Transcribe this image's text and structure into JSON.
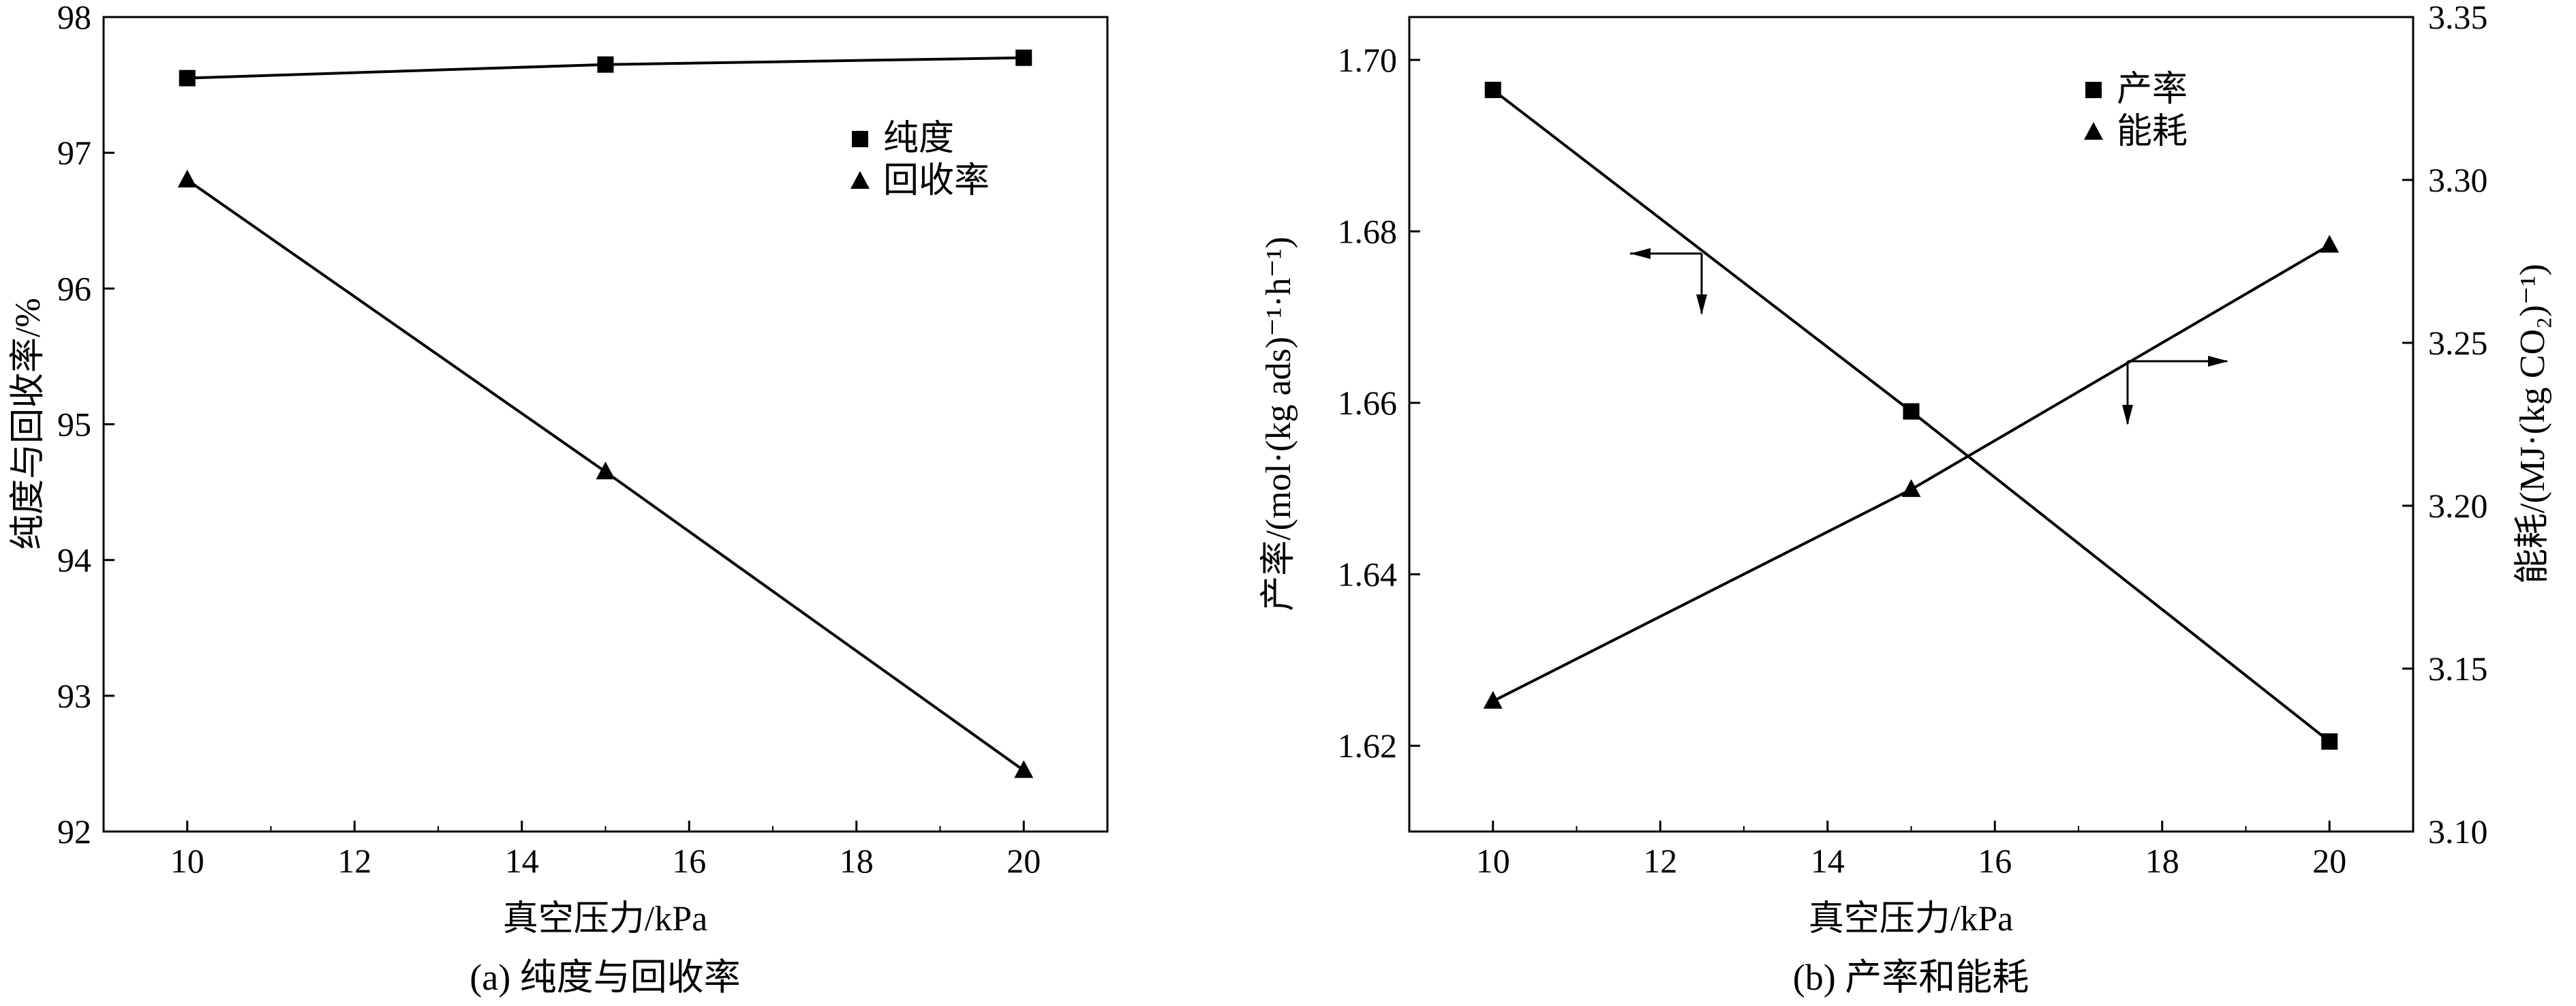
{
  "chart_data": [
    {
      "type": "line",
      "caption": "(a) 纯度与回收率",
      "xlabel": "真空压力/kPa",
      "ylabel": "纯度与回收率/%",
      "xlim": [
        9,
        21
      ],
      "ylim": [
        92,
        98
      ],
      "xticks": [
        "10",
        "12",
        "14",
        "16",
        "18",
        "20"
      ],
      "yticks": [
        "92",
        "93",
        "94",
        "95",
        "96",
        "97",
        "98"
      ],
      "x": [
        10,
        15,
        20
      ],
      "series": [
        {
          "name": "纯度",
          "marker": "square",
          "values": [
            97.55,
            97.65,
            97.7
          ]
        },
        {
          "name": "回收率",
          "marker": "triangle",
          "values": [
            96.8,
            94.65,
            92.45
          ]
        }
      ],
      "legend": "top-right"
    },
    {
      "type": "line",
      "caption": "(b) 产率和能耗",
      "xlabel": "真空压力/kPa",
      "ylabel": "产率/(mol·(kg ads)⁻¹·h⁻¹)",
      "y2label": "能耗/(MJ·(kg CO₂)⁻¹)",
      "xlim": [
        9,
        21
      ],
      "ylim": [
        1.61,
        1.705
      ],
      "y2lim": [
        3.1,
        3.35
      ],
      "xticks": [
        "10",
        "12",
        "14",
        "16",
        "18",
        "20"
      ],
      "yticks": [
        "1.62",
        "1.64",
        "1.66",
        "1.68",
        "1.70"
      ],
      "y2ticks": [
        "3.10",
        "3.15",
        "3.20",
        "3.25",
        "3.30",
        "3.35"
      ],
      "x": [
        10,
        15,
        20
      ],
      "series": [
        {
          "name": "产率",
          "marker": "square",
          "axis": "left",
          "values": [
            1.6965,
            1.659,
            1.6205
          ]
        },
        {
          "name": "能耗",
          "marker": "triangle",
          "axis": "right",
          "values": [
            3.14,
            3.205,
            3.28
          ]
        }
      ],
      "legend": "top-right"
    }
  ]
}
